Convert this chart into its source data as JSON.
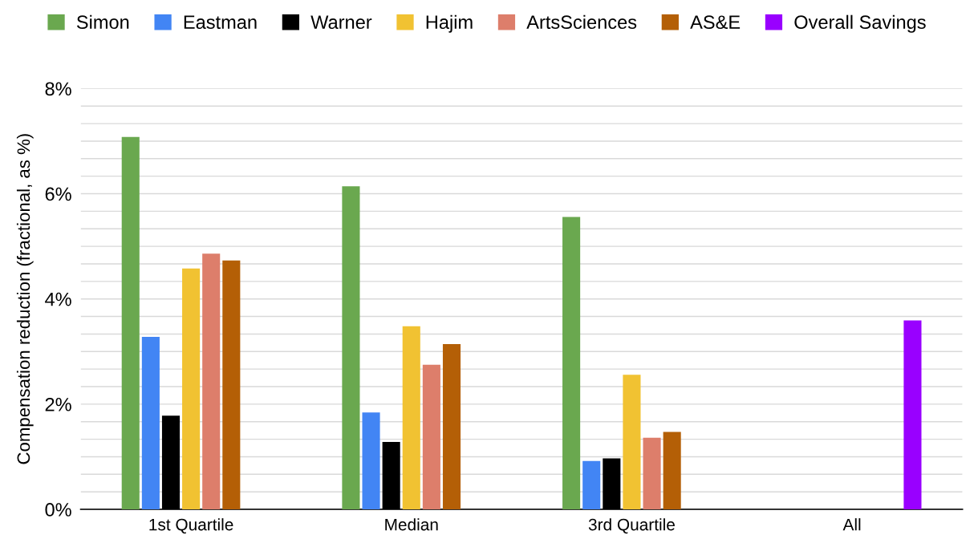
{
  "chart_data": {
    "type": "bar",
    "ylabel": "Compensation reduction (fractional, as %)",
    "categories": [
      "1st Quartile",
      "Median",
      "3rd Quartile",
      "All"
    ],
    "series": [
      {
        "name": "Simon",
        "color": "#6aa84f",
        "values": [
          7.08,
          6.14,
          5.56,
          null
        ]
      },
      {
        "name": "Eastman",
        "color": "#4285f4",
        "values": [
          3.28,
          1.84,
          0.92,
          null
        ]
      },
      {
        "name": "Warner",
        "color": "#000000",
        "values": [
          1.78,
          1.28,
          0.97,
          null
        ]
      },
      {
        "name": "Hajim",
        "color": "#f1c232",
        "values": [
          4.58,
          3.48,
          2.56,
          null
        ]
      },
      {
        "name": "ArtsSciences",
        "color": "#dd7e6b",
        "values": [
          4.86,
          2.75,
          1.36,
          null
        ]
      },
      {
        "name": "AS&E",
        "color": "#b45f06",
        "values": [
          4.73,
          3.14,
          1.47,
          null
        ]
      },
      {
        "name": "Overall Savings",
        "color": "#9900ff",
        "values": [
          null,
          null,
          null,
          3.59
        ]
      }
    ],
    "ylim": [
      0,
      8
    ],
    "yticks": [
      {
        "value": 0,
        "label": "0%"
      },
      {
        "value": 0.333,
        "label": null
      },
      {
        "value": 0.667,
        "label": null
      },
      {
        "value": 1,
        "label": null
      },
      {
        "value": 1.333,
        "label": null
      },
      {
        "value": 1.667,
        "label": null
      },
      {
        "value": 2,
        "label": "2%"
      },
      {
        "value": 2.333,
        "label": null
      },
      {
        "value": 2.667,
        "label": null
      },
      {
        "value": 3,
        "label": null
      },
      {
        "value": 3.333,
        "label": null
      },
      {
        "value": 3.667,
        "label": null
      },
      {
        "value": 4,
        "label": "4%"
      },
      {
        "value": 4.333,
        "label": null
      },
      {
        "value": 4.667,
        "label": null
      },
      {
        "value": 5,
        "label": null
      },
      {
        "value": 5.333,
        "label": null
      },
      {
        "value": 5.667,
        "label": null
      },
      {
        "value": 6,
        "label": "6%"
      },
      {
        "value": 6.333,
        "label": null
      },
      {
        "value": 6.667,
        "label": null
      },
      {
        "value": 7,
        "label": null
      },
      {
        "value": 7.333,
        "label": null
      },
      {
        "value": 7.667,
        "label": null
      },
      {
        "value": 8,
        "label": "8%"
      }
    ],
    "grid": "y",
    "legend": "top"
  }
}
